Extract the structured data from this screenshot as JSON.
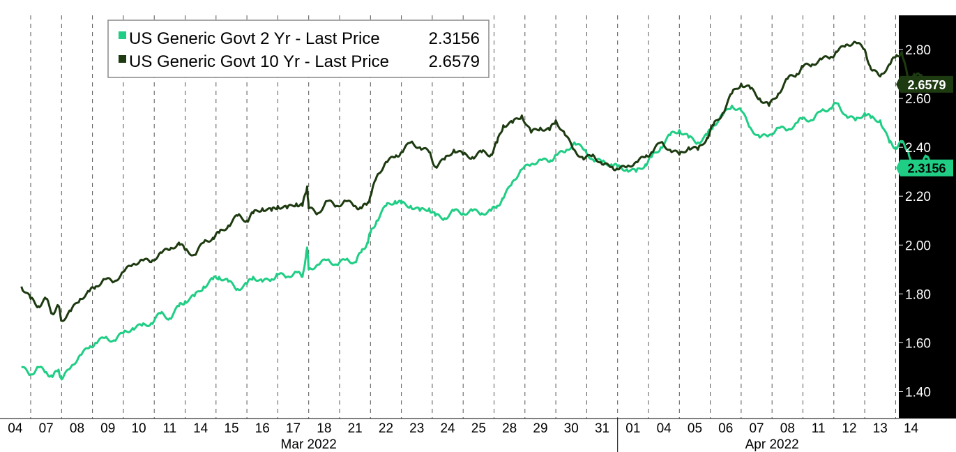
{
  "chart_data": {
    "type": "line",
    "title": "",
    "xlabel": "",
    "ylabel": "",
    "ylim": [
      1.29,
      2.94
    ],
    "yticks": [
      1.4,
      1.6,
      1.8,
      2.0,
      2.2,
      2.4,
      2.6,
      2.8
    ],
    "ytick_labels": [
      "1.40",
      "1.60",
      "1.80",
      "2.00",
      "2.20",
      "2.40",
      "2.60",
      "2.80"
    ],
    "y_axis_position": "right",
    "grid": "vertical dashed at day boundaries",
    "legend_position": "top-left",
    "x_days": [
      "04",
      "07",
      "08",
      "09",
      "10",
      "11",
      "14",
      "15",
      "16",
      "17",
      "18",
      "21",
      "22",
      "23",
      "24",
      "25",
      "28",
      "29",
      "30",
      "31",
      "01",
      "04",
      "05",
      "06",
      "07",
      "08",
      "11",
      "12",
      "13",
      "14"
    ],
    "month_labels": [
      {
        "label": "Mar 2022",
        "from_day_index": 0,
        "to_day_index": 19
      },
      {
        "label": "Apr 2022",
        "from_day_index": 20,
        "to_day_index": 29
      }
    ],
    "series": [
      {
        "name": "US Generic Govt 2 Yr - Last Price",
        "color": "#1fce84",
        "last_value": "2.3156",
        "x": [
          -0.3,
          0.0,
          0.25,
          0.5,
          0.7,
          0.9,
          1.0,
          1.3,
          1.6,
          1.9,
          2.1,
          2.4,
          2.7,
          3.0,
          3.3,
          3.6,
          3.9,
          4.2,
          4.5,
          4.8,
          5.0,
          5.3,
          5.6,
          5.9,
          6.1,
          6.4,
          6.7,
          7.0,
          7.2,
          7.5,
          7.8,
          8.0,
          8.3,
          8.6,
          8.8,
          8.95,
          9.0,
          9.3,
          9.6,
          9.9,
          10.2,
          10.5,
          10.7,
          10.9,
          11.0,
          11.2,
          11.5,
          11.8,
          12.0,
          12.3,
          12.6,
          12.9,
          13.1,
          13.4,
          13.7,
          14.0,
          14.3,
          14.6,
          14.9,
          15.1,
          15.3,
          15.6,
          15.9,
          16.2,
          16.5,
          16.8,
          17.0,
          17.3,
          17.6,
          17.9,
          18.2,
          18.5,
          18.8,
          19.0,
          19.3,
          19.6,
          19.9,
          20.1,
          20.4,
          20.7,
          21.0,
          21.3,
          21.6,
          21.9,
          22.1,
          22.4,
          22.7,
          23.0,
          23.3,
          23.6,
          23.9,
          24.2,
          24.5,
          24.8,
          25.0,
          25.3,
          25.6,
          25.9,
          26.1,
          26.4,
          26.7,
          27.0,
          27.2,
          27.5,
          27.8,
          28.0,
          28.2,
          28.4,
          28.6,
          28.8,
          29.0,
          29.2
        ],
        "y": [
          1.5,
          1.47,
          1.5,
          1.48,
          1.46,
          1.49,
          1.45,
          1.5,
          1.55,
          1.58,
          1.6,
          1.62,
          1.61,
          1.64,
          1.66,
          1.67,
          1.68,
          1.72,
          1.7,
          1.75,
          1.77,
          1.79,
          1.83,
          1.86,
          1.87,
          1.85,
          1.82,
          1.84,
          1.87,
          1.85,
          1.86,
          1.88,
          1.87,
          1.89,
          1.87,
          1.99,
          1.9,
          1.92,
          1.94,
          1.92,
          1.94,
          1.93,
          1.97,
          2.01,
          2.05,
          2.1,
          2.16,
          2.18,
          2.17,
          2.16,
          2.14,
          2.15,
          2.12,
          2.11,
          2.14,
          2.13,
          2.14,
          2.13,
          2.14,
          2.16,
          2.19,
          2.26,
          2.31,
          2.33,
          2.35,
          2.34,
          2.37,
          2.38,
          2.42,
          2.39,
          2.35,
          2.34,
          2.33,
          2.32,
          2.31,
          2.3,
          2.33,
          2.36,
          2.4,
          2.45,
          2.47,
          2.44,
          2.42,
          2.45,
          2.49,
          2.53,
          2.57,
          2.55,
          2.48,
          2.44,
          2.45,
          2.48,
          2.47,
          2.5,
          2.52,
          2.51,
          2.55,
          2.56,
          2.58,
          2.53,
          2.51,
          2.54,
          2.52,
          2.51,
          2.42,
          2.4,
          2.42,
          2.39,
          2.3,
          2.34,
          2.36,
          2.32
        ]
      },
      {
        "name": "US Generic Govt 10 Yr - Last Price",
        "color": "#1d3a10",
        "last_value": "2.6579",
        "x": [
          -0.3,
          0.0,
          0.25,
          0.5,
          0.7,
          0.9,
          1.0,
          1.3,
          1.6,
          1.9,
          2.1,
          2.4,
          2.7,
          3.0,
          3.3,
          3.6,
          3.9,
          4.2,
          4.5,
          4.8,
          5.0,
          5.3,
          5.6,
          5.9,
          6.1,
          6.4,
          6.7,
          7.0,
          7.2,
          7.5,
          7.8,
          8.0,
          8.3,
          8.6,
          8.8,
          8.95,
          9.0,
          9.3,
          9.6,
          9.9,
          10.2,
          10.5,
          10.7,
          10.9,
          11.0,
          11.2,
          11.5,
          11.8,
          12.0,
          12.3,
          12.6,
          12.9,
          13.1,
          13.4,
          13.7,
          14.0,
          14.3,
          14.6,
          14.9,
          15.1,
          15.3,
          15.6,
          15.9,
          16.2,
          16.5,
          16.8,
          17.0,
          17.3,
          17.6,
          17.9,
          18.2,
          18.5,
          18.8,
          19.0,
          19.3,
          19.6,
          19.9,
          20.1,
          20.4,
          20.7,
          21.0,
          21.3,
          21.6,
          21.9,
          22.1,
          22.4,
          22.7,
          23.0,
          23.3,
          23.6,
          23.9,
          24.2,
          24.5,
          24.8,
          25.0,
          25.3,
          25.6,
          25.9,
          26.1,
          26.4,
          26.7,
          27.0,
          27.2,
          27.5,
          27.8,
          28.0,
          28.2,
          28.4,
          28.6,
          28.8,
          29.0,
          29.2
        ],
        "y": [
          1.83,
          1.78,
          1.75,
          1.78,
          1.72,
          1.75,
          1.69,
          1.73,
          1.78,
          1.81,
          1.83,
          1.86,
          1.85,
          1.89,
          1.92,
          1.94,
          1.93,
          1.97,
          1.98,
          2.01,
          1.98,
          1.96,
          2.01,
          2.03,
          2.05,
          2.08,
          2.12,
          2.1,
          2.13,
          2.15,
          2.14,
          2.16,
          2.15,
          2.17,
          2.16,
          2.24,
          2.15,
          2.13,
          2.18,
          2.16,
          2.18,
          2.16,
          2.15,
          2.17,
          2.2,
          2.28,
          2.34,
          2.36,
          2.38,
          2.42,
          2.4,
          2.38,
          2.32,
          2.35,
          2.39,
          2.37,
          2.36,
          2.38,
          2.37,
          2.42,
          2.49,
          2.5,
          2.53,
          2.46,
          2.48,
          2.47,
          2.51,
          2.45,
          2.39,
          2.35,
          2.37,
          2.33,
          2.32,
          2.31,
          2.32,
          2.34,
          2.36,
          2.38,
          2.42,
          2.39,
          2.37,
          2.4,
          2.39,
          2.44,
          2.49,
          2.54,
          2.62,
          2.66,
          2.64,
          2.6,
          2.57,
          2.62,
          2.68,
          2.7,
          2.73,
          2.74,
          2.76,
          2.77,
          2.79,
          2.82,
          2.83,
          2.8,
          2.72,
          2.69,
          2.74,
          2.77,
          2.79,
          2.68,
          2.7,
          2.69,
          2.68,
          2.66
        ]
      }
    ]
  }
}
